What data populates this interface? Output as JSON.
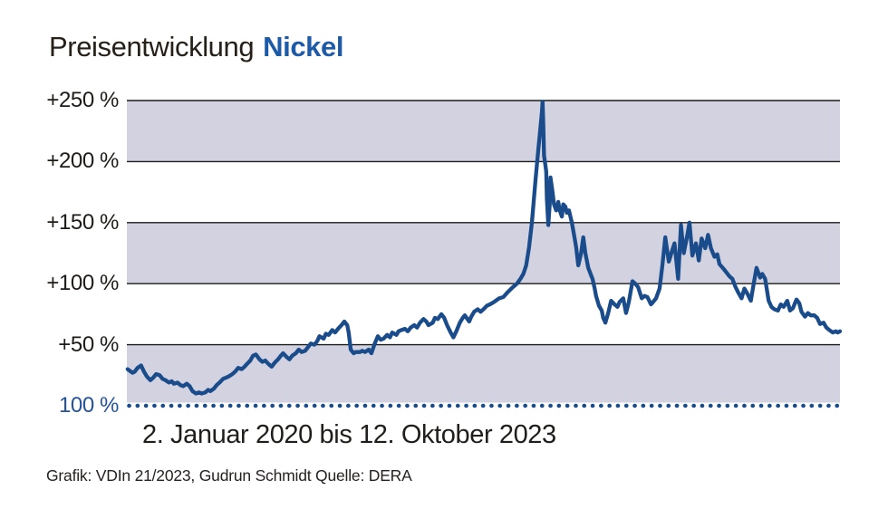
{
  "title": {
    "prefix": "Preisentwicklung",
    "commodity": "Nickel"
  },
  "caption": "2. Januar 2020 bis 12. Oktober 2023",
  "credit": "Grafik: VDIn 21/2023, Gudrun Schmidt Quelle: DERA",
  "colors": {
    "line": "#1a4c8c",
    "band": "#d2d2e0",
    "grid": "#1c1c1c",
    "title_highlight": "#1d5aa8",
    "baseline_label": "#24539b",
    "axis_text": "#1f1b18"
  },
  "y_axis": {
    "ticks": [
      {
        "label": "+250 %",
        "value": 250,
        "emphasis": false
      },
      {
        "label": "+200 %",
        "value": 200,
        "emphasis": false
      },
      {
        "label": "+150 %",
        "value": 150,
        "emphasis": false
      },
      {
        "label": "+100 %",
        "value": 100,
        "emphasis": false
      },
      {
        "label": "+50 %",
        "value": 50,
        "emphasis": false
      },
      {
        "label": "100 %",
        "value": 0,
        "emphasis": true
      }
    ]
  },
  "chart_data": {
    "type": "line",
    "title": "Preisentwicklung Nickel",
    "xlabel": "2. Januar 2020 bis 12. Oktober 2023",
    "ylabel": "",
    "x_range": {
      "from": "2. Januar 2020",
      "to": "12. Oktober 2023",
      "unit": "fraction 0-1 of date range"
    },
    "ylim": [
      0,
      250
    ],
    "y_unit": "percent above 100 % baseline",
    "y_gridlines": [
      250,
      200,
      150,
      100,
      50
    ],
    "y_tick_labels": [
      "+250 %",
      "+200 %",
      "+150 %",
      "+100 %",
      "+50 %"
    ],
    "baseline": {
      "value": 0,
      "label": "100 %",
      "style": "dotted"
    },
    "bands": {
      "between": [
        [
          250,
          200
        ],
        [
          150,
          100
        ],
        [
          50,
          0
        ]
      ],
      "color": "#d2d2e0"
    },
    "legend_position": "none",
    "series": [
      {
        "name": "Nickel",
        "color": "#1a4c8c",
        "points": [
          [
            0.001,
            30
          ],
          [
            0.008,
            27
          ],
          [
            0.011,
            28
          ],
          [
            0.015,
            31
          ],
          [
            0.02,
            33
          ],
          [
            0.024,
            28
          ],
          [
            0.028,
            24
          ],
          [
            0.033,
            21
          ],
          [
            0.037,
            23
          ],
          [
            0.041,
            26
          ],
          [
            0.046,
            25
          ],
          [
            0.05,
            22
          ],
          [
            0.054,
            21
          ],
          [
            0.059,
            19
          ],
          [
            0.063,
            20
          ],
          [
            0.066,
            18
          ],
          [
            0.071,
            19
          ],
          [
            0.075,
            17
          ],
          [
            0.079,
            16
          ],
          [
            0.084,
            18
          ],
          [
            0.088,
            16
          ],
          [
            0.092,
            12
          ],
          [
            0.097,
            10
          ],
          [
            0.101,
            11
          ],
          [
            0.105,
            10
          ],
          [
            0.11,
            11
          ],
          [
            0.114,
            13
          ],
          [
            0.117,
            12
          ],
          [
            0.122,
            14
          ],
          [
            0.126,
            17
          ],
          [
            0.13,
            19
          ],
          [
            0.135,
            22
          ],
          [
            0.139,
            23
          ],
          [
            0.143,
            24
          ],
          [
            0.148,
            26
          ],
          [
            0.152,
            28
          ],
          [
            0.156,
            31
          ],
          [
            0.161,
            30
          ],
          [
            0.165,
            32
          ],
          [
            0.168,
            34
          ],
          [
            0.173,
            37
          ],
          [
            0.177,
            41
          ],
          [
            0.181,
            42
          ],
          [
            0.186,
            38
          ],
          [
            0.19,
            36
          ],
          [
            0.194,
            37
          ],
          [
            0.199,
            34
          ],
          [
            0.203,
            32
          ],
          [
            0.207,
            35
          ],
          [
            0.212,
            38
          ],
          [
            0.216,
            41
          ],
          [
            0.219,
            43
          ],
          [
            0.224,
            40
          ],
          [
            0.228,
            38
          ],
          [
            0.232,
            41
          ],
          [
            0.237,
            43
          ],
          [
            0.241,
            46
          ],
          [
            0.245,
            44
          ],
          [
            0.25,
            45
          ],
          [
            0.254,
            48
          ],
          [
            0.258,
            51
          ],
          [
            0.263,
            50
          ],
          [
            0.267,
            53
          ],
          [
            0.27,
            57
          ],
          [
            0.276,
            55
          ],
          [
            0.279,
            59
          ],
          [
            0.283,
            58
          ],
          [
            0.288,
            62
          ],
          [
            0.292,
            60
          ],
          [
            0.296,
            63
          ],
          [
            0.301,
            66
          ],
          [
            0.305,
            69
          ],
          [
            0.309,
            66
          ],
          [
            0.311,
            60
          ],
          [
            0.314,
            46
          ],
          [
            0.318,
            43
          ],
          [
            0.321,
            44
          ],
          [
            0.327,
            44
          ],
          [
            0.33,
            45
          ],
          [
            0.334,
            44
          ],
          [
            0.339,
            46
          ],
          [
            0.343,
            43
          ],
          [
            0.347,
            50
          ],
          [
            0.352,
            57
          ],
          [
            0.356,
            54
          ],
          [
            0.36,
            55
          ],
          [
            0.365,
            58
          ],
          [
            0.369,
            56
          ],
          [
            0.372,
            60
          ],
          [
            0.378,
            58
          ],
          [
            0.381,
            61
          ],
          [
            0.385,
            62
          ],
          [
            0.39,
            63
          ],
          [
            0.394,
            61
          ],
          [
            0.398,
            64
          ],
          [
            0.403,
            66
          ],
          [
            0.407,
            64
          ],
          [
            0.411,
            68
          ],
          [
            0.416,
            71
          ],
          [
            0.42,
            69
          ],
          [
            0.423,
            66
          ],
          [
            0.429,
            68
          ],
          [
            0.432,
            72
          ],
          [
            0.436,
            71
          ],
          [
            0.441,
            75
          ],
          [
            0.445,
            72
          ],
          [
            0.449,
            66
          ],
          [
            0.454,
            60
          ],
          [
            0.458,
            56
          ],
          [
            0.462,
            61
          ],
          [
            0.467,
            68
          ],
          [
            0.471,
            72
          ],
          [
            0.474,
            74
          ],
          [
            0.48,
            69
          ],
          [
            0.483,
            73
          ],
          [
            0.487,
            77
          ],
          [
            0.492,
            79
          ],
          [
            0.496,
            77
          ],
          [
            0.5,
            79
          ],
          [
            0.505,
            82
          ],
          [
            0.509,
            83
          ],
          [
            0.515,
            85
          ],
          [
            0.522,
            88
          ],
          [
            0.528,
            89
          ],
          [
            0.534,
            93
          ],
          [
            0.541,
            97
          ],
          [
            0.547,
            100
          ],
          [
            0.552,
            104
          ],
          [
            0.556,
            108
          ],
          [
            0.56,
            115
          ],
          [
            0.564,
            130
          ],
          [
            0.568,
            150
          ],
          [
            0.573,
            185
          ],
          [
            0.577,
            210
          ],
          [
            0.579,
            222
          ],
          [
            0.582,
            240
          ],
          [
            0.583,
            249
          ],
          [
            0.584,
            230
          ],
          [
            0.585,
            205
          ],
          [
            0.588,
            192
          ],
          [
            0.589,
            170
          ],
          [
            0.591,
            148
          ],
          [
            0.593,
            165
          ],
          [
            0.594,
            187
          ],
          [
            0.597,
            175
          ],
          [
            0.599,
            165
          ],
          [
            0.602,
            160
          ],
          [
            0.605,
            167
          ],
          [
            0.607,
            160
          ],
          [
            0.61,
            155
          ],
          [
            0.612,
            165
          ],
          [
            0.615,
            163
          ],
          [
            0.617,
            158
          ],
          [
            0.62,
            160
          ],
          [
            0.624,
            150
          ],
          [
            0.628,
            137
          ],
          [
            0.63,
            130
          ],
          [
            0.633,
            115
          ],
          [
            0.637,
            125
          ],
          [
            0.64,
            138
          ],
          [
            0.643,
            125
          ],
          [
            0.647,
            113
          ],
          [
            0.651,
            107
          ],
          [
            0.653,
            104
          ],
          [
            0.656,
            96
          ],
          [
            0.658,
            90
          ],
          [
            0.662,
            82
          ],
          [
            0.666,
            78
          ],
          [
            0.668,
            72
          ],
          [
            0.671,
            68
          ],
          [
            0.675,
            76
          ],
          [
            0.679,
            86
          ],
          [
            0.684,
            83
          ],
          [
            0.688,
            81
          ],
          [
            0.691,
            85
          ],
          [
            0.696,
            88
          ],
          [
            0.7,
            76
          ],
          [
            0.704,
            85
          ],
          [
            0.709,
            102
          ],
          [
            0.713,
            100
          ],
          [
            0.717,
            97
          ],
          [
            0.722,
            88
          ],
          [
            0.726,
            90
          ],
          [
            0.73,
            89
          ],
          [
            0.735,
            83
          ],
          [
            0.738,
            85
          ],
          [
            0.742,
            88
          ],
          [
            0.747,
            96
          ],
          [
            0.751,
            115
          ],
          [
            0.755,
            138
          ],
          [
            0.76,
            118
          ],
          [
            0.764,
            126
          ],
          [
            0.768,
            133
          ],
          [
            0.773,
            104
          ],
          [
            0.777,
            148
          ],
          [
            0.781,
            125
          ],
          [
            0.786,
            140
          ],
          [
            0.789,
            150
          ],
          [
            0.793,
            123
          ],
          [
            0.798,
            133
          ],
          [
            0.802,
            119
          ],
          [
            0.806,
            137
          ],
          [
            0.811,
            129
          ],
          [
            0.815,
            140
          ],
          [
            0.819,
            129
          ],
          [
            0.824,
            122
          ],
          [
            0.828,
            124
          ],
          [
            0.831,
            116
          ],
          [
            0.837,
            112
          ],
          [
            0.841,
            109
          ],
          [
            0.845,
            106
          ],
          [
            0.849,
            104
          ],
          [
            0.853,
            98
          ],
          [
            0.857,
            93
          ],
          [
            0.862,
            88
          ],
          [
            0.866,
            96
          ],
          [
            0.87,
            92
          ],
          [
            0.875,
            86
          ],
          [
            0.879,
            100
          ],
          [
            0.883,
            113
          ],
          [
            0.888,
            105
          ],
          [
            0.891,
            108
          ],
          [
            0.895,
            104
          ],
          [
            0.9,
            86
          ],
          [
            0.904,
            81
          ],
          [
            0.908,
            79
          ],
          [
            0.913,
            78
          ],
          [
            0.917,
            83
          ],
          [
            0.921,
            81
          ],
          [
            0.926,
            86
          ],
          [
            0.93,
            78
          ],
          [
            0.934,
            80
          ],
          [
            0.939,
            87
          ],
          [
            0.943,
            84
          ],
          [
            0.946,
            77
          ],
          [
            0.951,
            73
          ],
          [
            0.955,
            76
          ],
          [
            0.959,
            74
          ],
          [
            0.964,
            74
          ],
          [
            0.968,
            72
          ],
          [
            0.972,
            67
          ],
          [
            0.977,
            68
          ],
          [
            0.981,
            64
          ],
          [
            0.985,
            62
          ],
          [
            0.99,
            60
          ],
          [
            0.994,
            61
          ],
          [
            0.997,
            60
          ],
          [
            1.0,
            61
          ]
        ]
      }
    ]
  }
}
